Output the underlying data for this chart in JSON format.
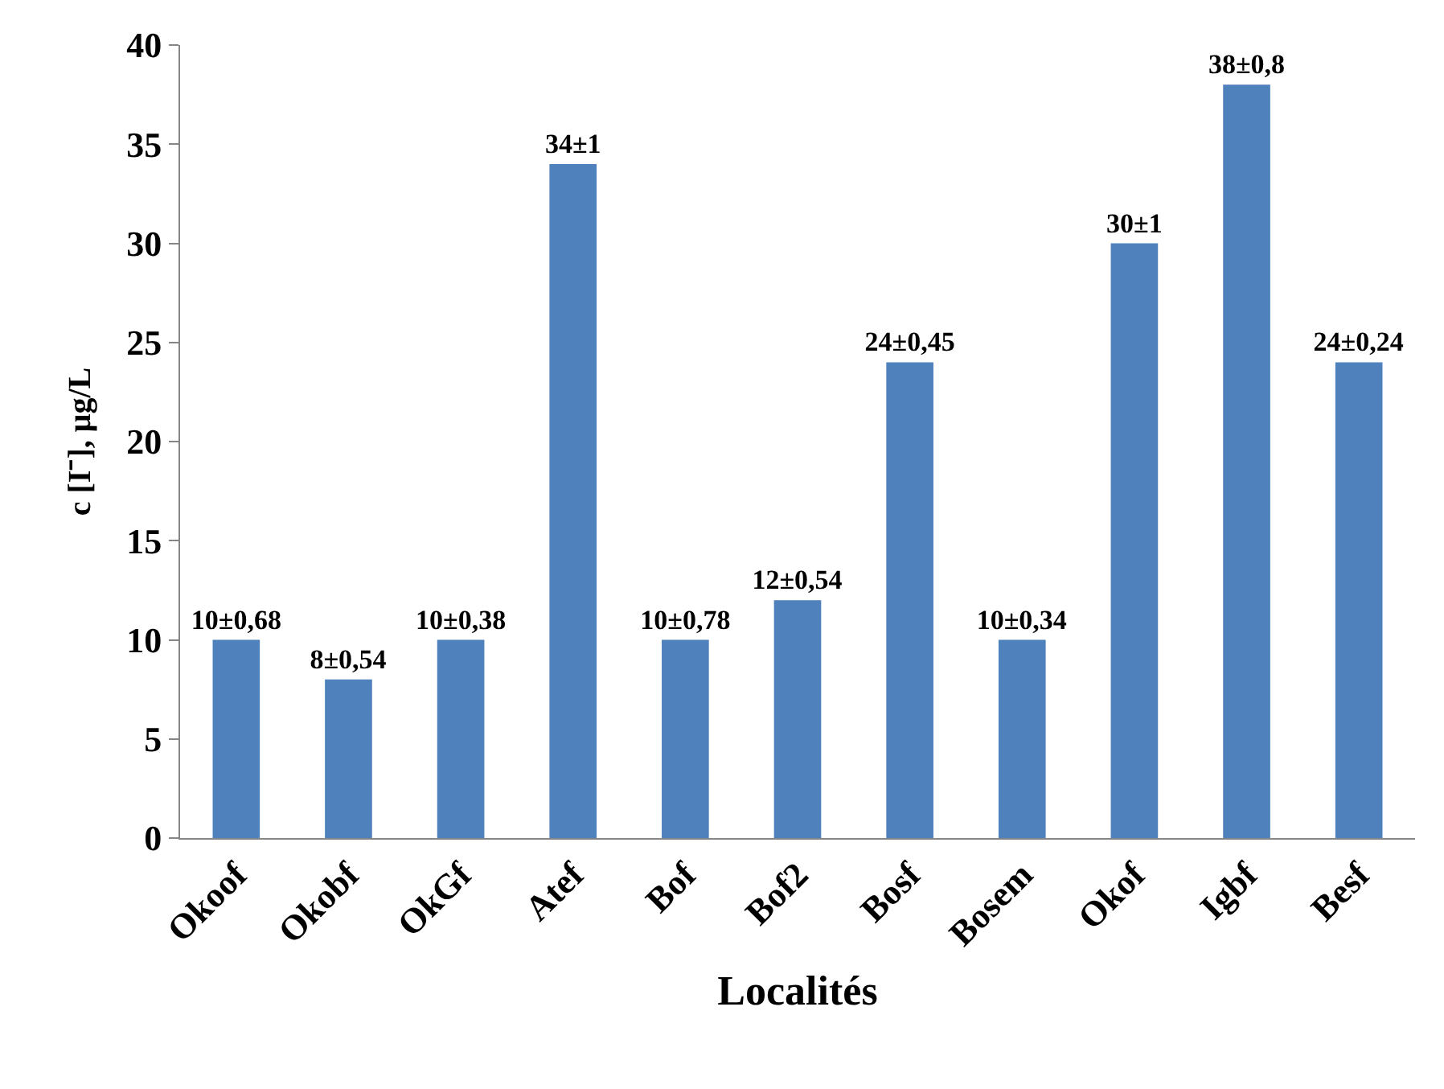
{
  "chart_data": {
    "type": "bar",
    "xlabel": "Localités",
    "ylabel": "c [I⁻], μg/L",
    "categories": [
      "Okoof",
      "Okobf",
      "OkGf",
      "Atef",
      "Bof",
      "Bof2",
      "Bosf",
      "Bosem",
      "Okof",
      "Igbf",
      "Besf"
    ],
    "values": [
      10,
      8,
      10,
      34,
      10,
      12,
      24,
      10,
      30,
      38,
      24
    ],
    "value_labels": [
      "10±0,68",
      "8±0,54",
      "10±0,38",
      "34±1",
      "10±0,78",
      "12±0,54",
      "24±0,45",
      "10±0,34",
      "30±1",
      "38±0,8",
      "24±0,24"
    ],
    "color": "#4f81bd",
    "ylim": [
      0,
      40
    ],
    "yticks": [
      0,
      5,
      10,
      15,
      20,
      25,
      30,
      35,
      40
    ],
    "grid": false,
    "legend": false
  }
}
